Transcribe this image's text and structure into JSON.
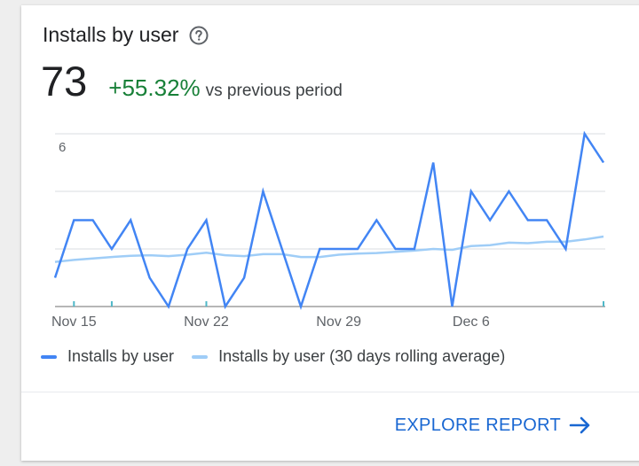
{
  "card": {
    "title": "Installs by user",
    "help_icon": "help-circle-icon"
  },
  "metric": {
    "value": "73",
    "change": "+55.32%",
    "compare_text": "vs previous period"
  },
  "colors": {
    "primary_series": "#4285f4",
    "rolling_series": "#9fcdf7",
    "positive_change": "#188038",
    "link": "#1967d2"
  },
  "chart_data": {
    "type": "line",
    "ylim": [
      0,
      6
    ],
    "y_tick_labels": [
      {
        "value": 6,
        "label": "6"
      }
    ],
    "y_gridlines": [
      0,
      2,
      4,
      6
    ],
    "x_ticks": [
      {
        "index": 1,
        "label": "Nov 15"
      },
      {
        "index": 8,
        "label": "Nov 22"
      },
      {
        "index": 15,
        "label": "Nov 29"
      },
      {
        "index": 22,
        "label": "Dec 6"
      }
    ],
    "tick_markers": [
      1,
      3,
      8,
      29
    ],
    "series": [
      {
        "name": "Installs by user",
        "color": "#4285f4",
        "values": [
          1,
          3,
          3,
          2,
          3,
          1,
          0,
          2,
          3,
          0,
          1,
          4,
          2,
          0,
          2,
          2,
          2,
          3,
          2,
          2,
          5,
          0,
          4,
          3,
          4,
          3,
          3,
          2,
          6,
          5
        ]
      },
      {
        "name": "Installs by user (30 days rolling average)",
        "color": "#9fcdf7",
        "values": [
          1.55,
          1.62,
          1.67,
          1.72,
          1.76,
          1.78,
          1.75,
          1.8,
          1.87,
          1.78,
          1.75,
          1.82,
          1.82,
          1.72,
          1.72,
          1.8,
          1.84,
          1.86,
          1.9,
          1.94,
          2.0,
          1.97,
          2.1,
          2.13,
          2.22,
          2.2,
          2.25,
          2.25,
          2.33,
          2.43
        ]
      }
    ],
    "legend_position": "bottom-left",
    "grid": true
  },
  "legend": {
    "items": [
      {
        "label": "Installs by user",
        "color": "#4285f4"
      },
      {
        "label": "Installs by user (30 days rolling average)",
        "color": "#9fcdf7"
      }
    ]
  },
  "action": {
    "label": "EXPLORE REPORT",
    "icon": "arrow-right-icon"
  }
}
